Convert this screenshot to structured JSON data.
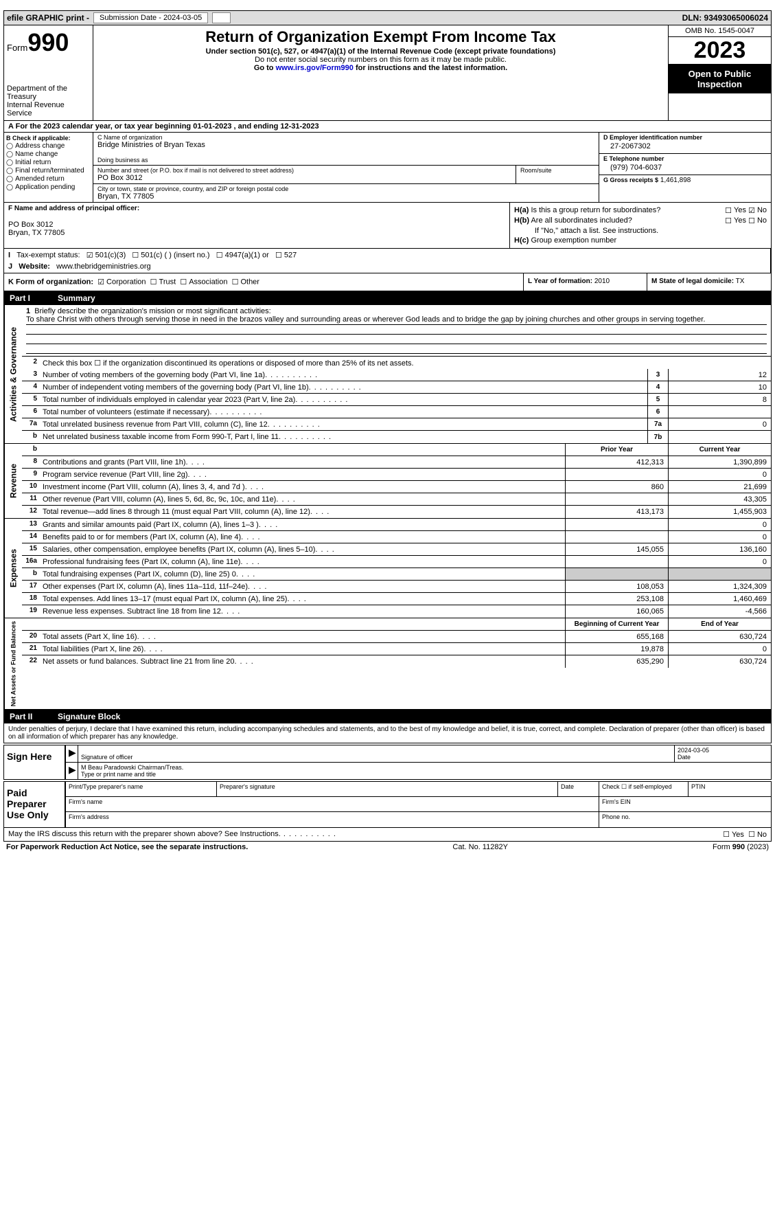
{
  "topbar": {
    "efile": "efile GRAPHIC print -",
    "submission": "Submission Date - 2024-03-05",
    "dln": "DLN: 93493065006024"
  },
  "header": {
    "form_label": "Form",
    "form_num": "990",
    "dept": "Department of the Treasury",
    "irs": "Internal Revenue Service",
    "title": "Return of Organization Exempt From Income Tax",
    "sub": "Under section 501(c), 527, or 4947(a)(1) of the Internal Revenue Code (except private foundations)",
    "note1": "Do not enter social security numbers on this form as it may be made public.",
    "note2_prefix": "Go to ",
    "note2_link": "www.irs.gov/Form990",
    "note2_suffix": " for instructions and the latest information.",
    "omb": "OMB No. 1545-0047",
    "year": "2023",
    "open": "Open to Public Inspection"
  },
  "line_a": "For the 2023 calendar year, or tax year beginning 01-01-2023   , and ending 12-31-2023",
  "section_b": {
    "label": "B Check if applicable:",
    "items": [
      "Address change",
      "Name change",
      "Initial return",
      "Final return/terminated",
      "Amended return",
      "Application pending"
    ]
  },
  "section_c": {
    "name_label": "C Name of organization",
    "name": "Bridge Ministries of Bryan Texas",
    "dba_label": "Doing business as",
    "addr_label": "Number and street (or P.O. box if mail is not delivered to street address)",
    "addr": "PO Box 3012",
    "room_label": "Room/suite",
    "city_label": "City or town, state or province, country, and ZIP or foreign postal code",
    "city": "Bryan, TX  77805"
  },
  "section_d": {
    "ein_label": "D Employer identification number",
    "ein": "27-2067302",
    "tel_label": "E Telephone number",
    "tel": "(979) 704-6037",
    "gross_label": "G Gross receipts $",
    "gross": "1,461,898"
  },
  "section_f": {
    "label": "F  Name and address of principal officer:",
    "addr1": "PO Box 3012",
    "addr2": "Bryan, TX  77805"
  },
  "section_h": {
    "ha": "Is this a group return for subordinates?",
    "hb": "Are all subordinates included?",
    "hb_note": "If \"No,\" attach a list. See instructions.",
    "hc": "Group exemption number",
    "ha_label": "H(a)",
    "hb_label": "H(b)",
    "hc_label": "H(c)"
  },
  "section_i": {
    "label": "Tax-exempt status:",
    "o1": "501(c)(3)",
    "o2": "501(c) (  ) (insert no.)",
    "o3": "4947(a)(1) or",
    "o4": "527"
  },
  "section_j": {
    "label": "Website:",
    "val": "www.thebridgeministries.org"
  },
  "section_k": {
    "label": "K Form of organization:",
    "o1": "Corporation",
    "o2": "Trust",
    "o3": "Association",
    "o4": "Other"
  },
  "section_l": {
    "label": "L Year of formation:",
    "val": "2010"
  },
  "section_m": {
    "label": "M State of legal domicile:",
    "val": "TX"
  },
  "part1": {
    "num": "Part I",
    "title": "Summary"
  },
  "summary": {
    "q1": "Briefly describe the organization's mission or most significant activities:",
    "mission": "To share Christ with others through serving those in need in the brazos valley and surrounding areas or wherever God leads and to bridge the gap by joining churches and other groups in serving together.",
    "q2": "Check this box ☐ if the organization discontinued its operations or disposed of more than 25% of its net assets.",
    "groups": {
      "governance": "Activities & Governance",
      "revenue": "Revenue",
      "expenses": "Expenses",
      "netassets": "Net Assets or Fund Balances"
    },
    "col_hdr": {
      "prior": "Prior Year",
      "current": "Current Year",
      "begin": "Beginning of Current Year",
      "end": "End of Year"
    },
    "lines_gov": [
      {
        "n": "3",
        "d": "Number of voting members of the governing body (Part VI, line 1a)",
        "bn": "3",
        "v": "12"
      },
      {
        "n": "4",
        "d": "Number of independent voting members of the governing body (Part VI, line 1b)",
        "bn": "4",
        "v": "10"
      },
      {
        "n": "5",
        "d": "Total number of individuals employed in calendar year 2023 (Part V, line 2a)",
        "bn": "5",
        "v": "8"
      },
      {
        "n": "6",
        "d": "Total number of volunteers (estimate if necessary)",
        "bn": "6",
        "v": ""
      },
      {
        "n": "7a",
        "d": "Total unrelated business revenue from Part VIII, column (C), line 12",
        "bn": "7a",
        "v": "0"
      },
      {
        "n": " b",
        "d": "Net unrelated business taxable income from Form 990-T, Part I, line 11",
        "bn": "7b",
        "v": ""
      }
    ],
    "lines_rev": [
      {
        "n": "8",
        "d": "Contributions and grants (Part VIII, line 1h)",
        "p": "412,313",
        "c": "1,390,899"
      },
      {
        "n": "9",
        "d": "Program service revenue (Part VIII, line 2g)",
        "p": "",
        "c": "0"
      },
      {
        "n": "10",
        "d": "Investment income (Part VIII, column (A), lines 3, 4, and 7d )",
        "p": "860",
        "c": "21,699"
      },
      {
        "n": "11",
        "d": "Other revenue (Part VIII, column (A), lines 5, 6d, 8c, 9c, 10c, and 11e)",
        "p": "",
        "c": "43,305"
      },
      {
        "n": "12",
        "d": "Total revenue—add lines 8 through 11 (must equal Part VIII, column (A), line 12)",
        "p": "413,173",
        "c": "1,455,903"
      }
    ],
    "lines_exp": [
      {
        "n": "13",
        "d": "Grants and similar amounts paid (Part IX, column (A), lines 1–3 )",
        "p": "",
        "c": "0"
      },
      {
        "n": "14",
        "d": "Benefits paid to or for members (Part IX, column (A), line 4)",
        "p": "",
        "c": "0"
      },
      {
        "n": "15",
        "d": "Salaries, other compensation, employee benefits (Part IX, column (A), lines 5–10)",
        "p": "145,055",
        "c": "136,160"
      },
      {
        "n": "16a",
        "d": "Professional fundraising fees (Part IX, column (A), line 11e)",
        "p": "",
        "c": "0"
      },
      {
        "n": " b",
        "d": "Total fundraising expenses (Part IX, column (D), line 25) 0",
        "p": "GREY",
        "c": "GREY"
      },
      {
        "n": "17",
        "d": "Other expenses (Part IX, column (A), lines 11a–11d, 11f–24e)",
        "p": "108,053",
        "c": "1,324,309"
      },
      {
        "n": "18",
        "d": "Total expenses. Add lines 13–17 (must equal Part IX, column (A), line 25)",
        "p": "253,108",
        "c": "1,460,469"
      },
      {
        "n": "19",
        "d": "Revenue less expenses. Subtract line 18 from line 12",
        "p": "160,065",
        "c": "-4,566"
      }
    ],
    "lines_net": [
      {
        "n": "20",
        "d": "Total assets (Part X, line 16)",
        "p": "655,168",
        "c": "630,724"
      },
      {
        "n": "21",
        "d": "Total liabilities (Part X, line 26)",
        "p": "19,878",
        "c": "0"
      },
      {
        "n": "22",
        "d": "Net assets or fund balances. Subtract line 21 from line 20",
        "p": "635,290",
        "c": "630,724"
      }
    ]
  },
  "part2": {
    "num": "Part II",
    "title": "Signature Block"
  },
  "sig": {
    "decl": "Under penalties of perjury, I declare that I have examined this return, including accompanying schedules and statements, and to the best of my knowledge and belief, it is true, correct, and complete. Declaration of preparer (other than officer) is based on all information of which preparer has any knowledge.",
    "sign_here": "Sign Here",
    "sig_officer_label": "Signature of officer",
    "date_label": "Date",
    "date_val": "2024-03-05",
    "officer_name": "M Beau Paradowski  Chairman/Treas.",
    "type_label": "Type or print name and title",
    "paid": "Paid Preparer Use Only",
    "prep_name_label": "Print/Type preparer's name",
    "prep_sig_label": "Preparer's signature",
    "check_self": "Check ☐ if self-employed",
    "ptin": "PTIN",
    "firm_name": "Firm's name",
    "firm_ein": "Firm's EIN",
    "firm_addr": "Firm's address",
    "phone": "Phone no."
  },
  "footer": {
    "discuss": "May the IRS discuss this return with the preparer shown above? See Instructions.",
    "paperwork": "For Paperwork Reduction Act Notice, see the separate instructions.",
    "cat": "Cat. No. 11282Y",
    "form": "Form 990 (2023)"
  }
}
